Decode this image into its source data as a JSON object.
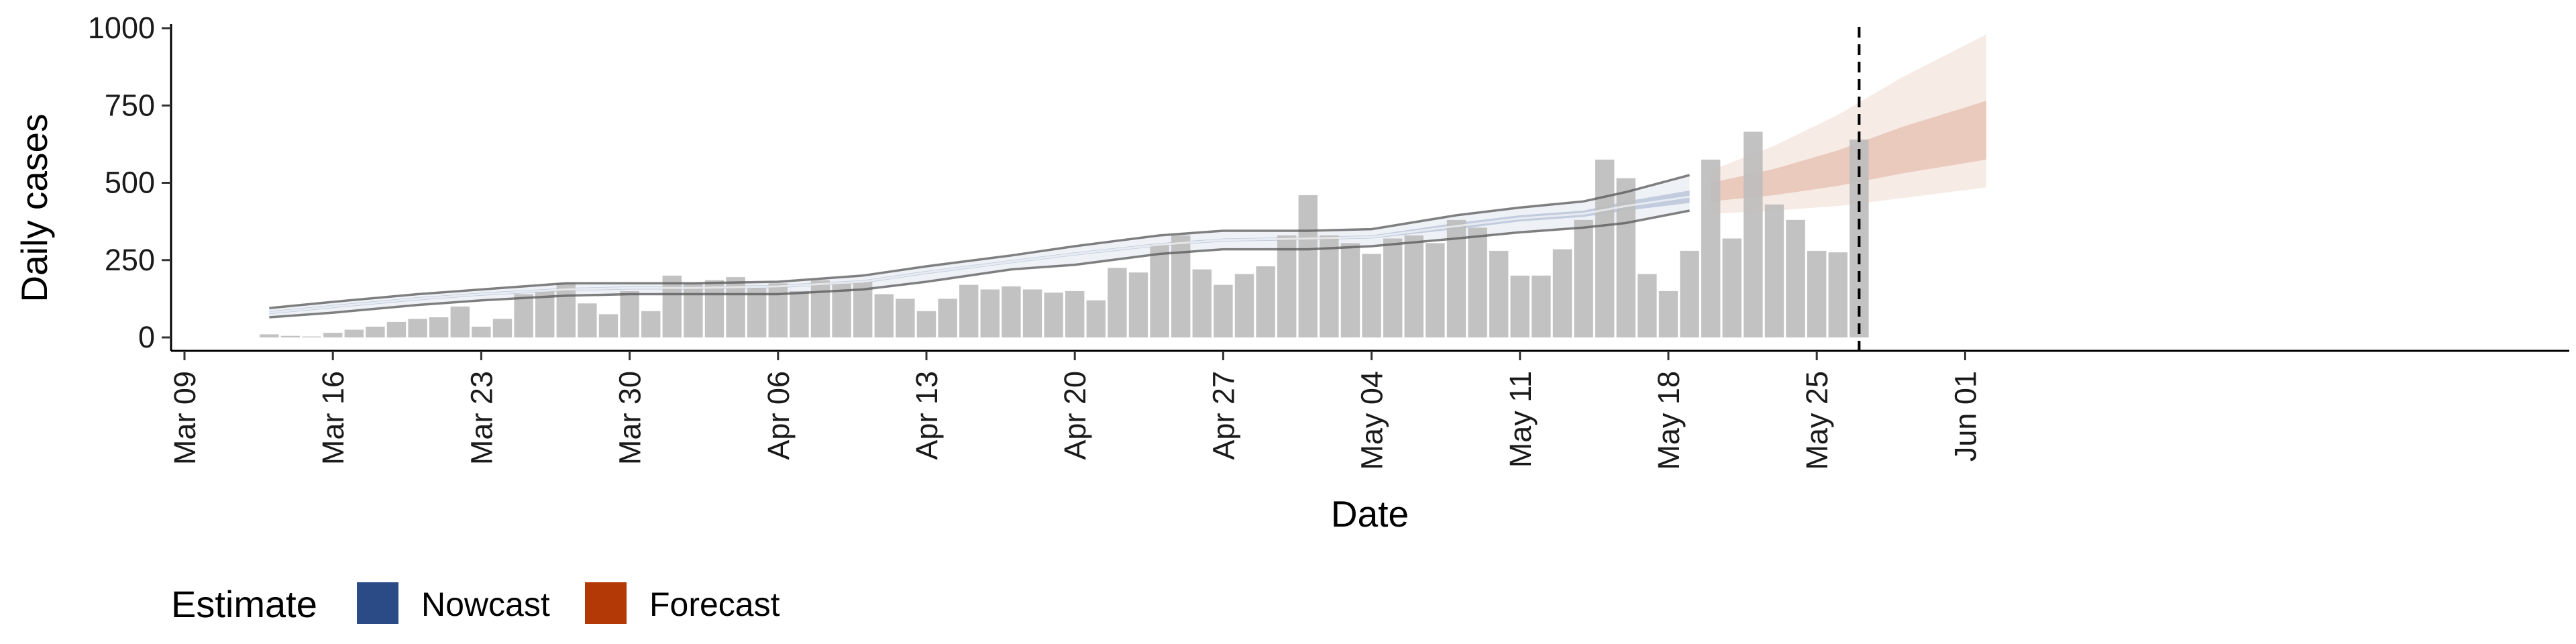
{
  "chart_data": {
    "type": "bar",
    "xlabel": "Date",
    "ylabel": "Daily cases",
    "ylim": [
      -25,
      1000
    ],
    "yticks": [
      0,
      250,
      500,
      750,
      1000
    ],
    "x_ticks": [
      {
        "date": "2020-03-09",
        "label": "Mar 09"
      },
      {
        "date": "2020-03-16",
        "label": "Mar 16"
      },
      {
        "date": "2020-03-23",
        "label": "Mar 23"
      },
      {
        "date": "2020-03-30",
        "label": "Mar 30"
      },
      {
        "date": "2020-04-06",
        "label": "Apr 06"
      },
      {
        "date": "2020-04-13",
        "label": "Apr 13"
      },
      {
        "date": "2020-04-20",
        "label": "Apr 20"
      },
      {
        "date": "2020-04-27",
        "label": "Apr 27"
      },
      {
        "date": "2020-05-04",
        "label": "May 04"
      },
      {
        "date": "2020-05-11",
        "label": "May 11"
      },
      {
        "date": "2020-05-18",
        "label": "May 18"
      },
      {
        "date": "2020-05-25",
        "label": "May 25"
      },
      {
        "date": "2020-06-01",
        "label": "Jun 01"
      }
    ],
    "xlim": [
      "2020-03-09",
      "2020-06-05"
    ],
    "bars_start_date": "2020-03-13",
    "daily_cases": [
      10,
      5,
      3,
      15,
      25,
      35,
      50,
      60,
      65,
      100,
      35,
      60,
      140,
      150,
      175,
      110,
      75,
      150,
      85,
      200,
      175,
      185,
      195,
      160,
      175,
      150,
      185,
      175,
      180,
      140,
      125,
      85,
      125,
      170,
      155,
      165,
      155,
      145,
      150,
      120,
      225,
      210,
      300,
      330,
      220,
      170,
      205,
      230,
      330,
      460,
      330,
      305,
      270,
      320,
      330,
      305,
      380,
      355,
      280,
      200,
      200,
      285,
      380,
      575,
      515,
      205,
      150,
      280,
      575,
      320,
      665,
      430,
      380,
      280,
      275,
      640
    ],
    "nowcast": {
      "dates": [
        "2020-03-13",
        "2020-03-16",
        "2020-03-20",
        "2020-03-23",
        "2020-03-27",
        "2020-03-30",
        "2020-04-02",
        "2020-04-06",
        "2020-04-10",
        "2020-04-13",
        "2020-04-17",
        "2020-04-20",
        "2020-04-24",
        "2020-04-27",
        "2020-05-01",
        "2020-05-04",
        "2020-05-08",
        "2020-05-11",
        "2020-05-14",
        "2020-05-16",
        "2020-05-19"
      ],
      "median": [
        80,
        100,
        125,
        140,
        155,
        160,
        160,
        165,
        180,
        210,
        245,
        270,
        300,
        315,
        320,
        325,
        360,
        385,
        400,
        425,
        455
      ],
      "lower_50": [
        75,
        95,
        120,
        135,
        150,
        155,
        155,
        160,
        175,
        205,
        240,
        265,
        295,
        310,
        315,
        320,
        350,
        375,
        390,
        410,
        435
      ],
      "upper_50": [
        85,
        105,
        130,
        145,
        160,
        165,
        165,
        170,
        185,
        215,
        250,
        275,
        305,
        320,
        325,
        330,
        370,
        395,
        410,
        440,
        475
      ],
      "lower_90": [
        65,
        80,
        105,
        120,
        135,
        140,
        140,
        140,
        155,
        180,
        220,
        235,
        270,
        285,
        285,
        295,
        320,
        340,
        355,
        370,
        410
      ],
      "upper_90": [
        95,
        115,
        140,
        155,
        175,
        175,
        175,
        180,
        200,
        230,
        265,
        295,
        330,
        345,
        345,
        350,
        395,
        420,
        440,
        470,
        525
      ]
    },
    "forecast": {
      "dates": [
        "2020-05-20",
        "2020-05-23",
        "2020-05-26",
        "2020-05-29",
        "2020-06-02"
      ],
      "median": [
        470,
        500,
        545,
        600,
        670
      ],
      "lower_50": [
        440,
        460,
        490,
        530,
        575
      ],
      "upper_50": [
        500,
        545,
        605,
        680,
        765
      ],
      "lower_90": [
        400,
        410,
        425,
        450,
        485
      ],
      "upper_90": [
        540,
        620,
        720,
        840,
        980
      ]
    },
    "vline_date": "2020-05-27",
    "legend": {
      "title": "Estimate",
      "entries": [
        {
          "label": "Nowcast",
          "color": "#2b4b87"
        },
        {
          "label": "Forecast",
          "color": "#b33a06"
        }
      ],
      "position": "bottom-left"
    },
    "colors": {
      "bars": "#bdbdbd",
      "nowcast": "#2b4b87",
      "forecast": "#b33a06",
      "ci_line": "#555555"
    }
  }
}
